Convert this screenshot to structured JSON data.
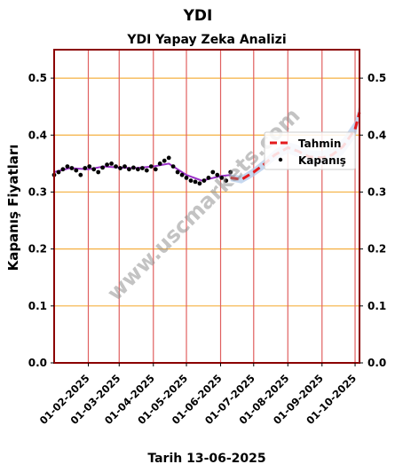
{
  "chart_data": {
    "type": "line",
    "suptitle": "YDI",
    "title": "YDI Yapay Zeka Analizi",
    "xlabel": "Tarih 13-06-2025",
    "ylabel": "Kapanış Fiyatları",
    "ylim": [
      0.0,
      0.55
    ],
    "xlim": [
      "2025-01-01",
      "2025-10-05"
    ],
    "yticks": [
      0.0,
      0.1,
      0.2,
      0.3,
      0.4,
      0.5
    ],
    "ytick_labels": [
      "0.0",
      "0.1",
      "0.2",
      "0.3",
      "0.4",
      "0.5"
    ],
    "xticks": [
      "2025-02-01",
      "2025-03-01",
      "2025-04-01",
      "2025-05-01",
      "2025-06-01",
      "2025-07-01",
      "2025-08-01",
      "2025-09-01",
      "2025-10-01"
    ],
    "xtick_labels": [
      "01-02-2025",
      "01-03-2025",
      "01-04-2025",
      "01-05-2025",
      "01-06-2025",
      "01-07-2025",
      "01-08-2025",
      "01-09-2025",
      "01-10-2025"
    ],
    "grid": "on",
    "legend_position": "right",
    "watermark": "www.uscmarkets.com",
    "colors": {
      "axis_frame": "#8b0000",
      "vgrid": "#e06060",
      "hgrid": "#f5b041",
      "forecast": "#e41a1c",
      "band": "#aec7e8",
      "moving_avg": "#9b30c8",
      "points": "#000000"
    },
    "series": [
      {
        "name": "Tahmin",
        "style": "dashed",
        "x": [
          "2025-06-10",
          "2025-06-20",
          "2025-07-01",
          "2025-07-10",
          "2025-07-20",
          "2025-08-01",
          "2025-08-10",
          "2025-08-20",
          "2025-09-01",
          "2025-09-10",
          "2025-09-20",
          "2025-10-01",
          "2025-10-05"
        ],
        "y": [
          0.325,
          0.322,
          0.335,
          0.348,
          0.365,
          0.378,
          0.372,
          0.362,
          0.36,
          0.365,
          0.38,
          0.41,
          0.44
        ]
      },
      {
        "name": "Kapanış",
        "style": "points",
        "x": [
          "2025-01-01",
          "2025-01-05",
          "2025-01-09",
          "2025-01-13",
          "2025-01-17",
          "2025-01-21",
          "2025-01-25",
          "2025-01-29",
          "2025-02-02",
          "2025-02-06",
          "2025-02-10",
          "2025-02-14",
          "2025-02-18",
          "2025-02-22",
          "2025-02-26",
          "2025-03-02",
          "2025-03-06",
          "2025-03-10",
          "2025-03-14",
          "2025-03-18",
          "2025-03-22",
          "2025-03-26",
          "2025-03-30",
          "2025-04-03",
          "2025-04-07",
          "2025-04-11",
          "2025-04-15",
          "2025-04-19",
          "2025-04-23",
          "2025-04-27",
          "2025-05-01",
          "2025-05-05",
          "2025-05-09",
          "2025-05-13",
          "2025-05-17",
          "2025-05-21",
          "2025-05-25",
          "2025-05-29",
          "2025-06-02",
          "2025-06-06",
          "2025-06-10"
        ],
        "y": [
          0.33,
          0.335,
          0.34,
          0.345,
          0.342,
          0.338,
          0.33,
          0.342,
          0.345,
          0.34,
          0.335,
          0.343,
          0.348,
          0.35,
          0.345,
          0.342,
          0.345,
          0.34,
          0.343,
          0.34,
          0.342,
          0.338,
          0.345,
          0.34,
          0.35,
          0.355,
          0.36,
          0.345,
          0.335,
          0.33,
          0.325,
          0.32,
          0.318,
          0.315,
          0.32,
          0.325,
          0.335,
          0.33,
          0.325,
          0.32,
          0.335
        ]
      },
      {
        "name": "",
        "style": "moving-average",
        "x": [
          "2025-01-01",
          "2025-01-15",
          "2025-02-01",
          "2025-02-15",
          "2025-03-01",
          "2025-03-15",
          "2025-04-01",
          "2025-04-15",
          "2025-05-01",
          "2025-05-15",
          "2025-06-01",
          "2025-06-10"
        ],
        "y": [
          0.335,
          0.342,
          0.34,
          0.345,
          0.343,
          0.342,
          0.345,
          0.35,
          0.33,
          0.32,
          0.328,
          0.33
        ]
      }
    ]
  }
}
